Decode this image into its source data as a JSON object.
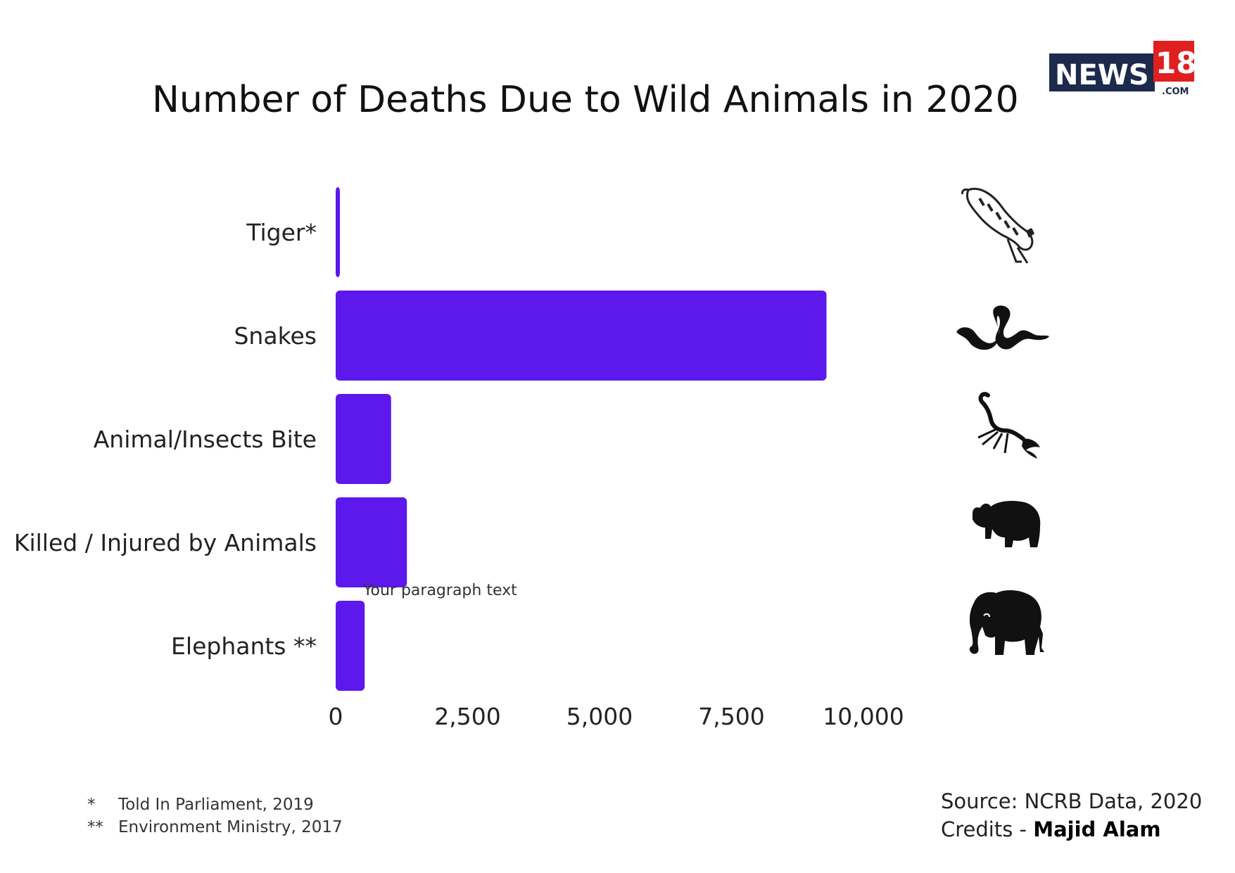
{
  "title": "Number of Deaths Due to Wild Animals in 2020",
  "logo": {
    "brand": "NEWS",
    "number": "18",
    "suffix": ".COM"
  },
  "placeholder_text": "Your paragraph text",
  "footnotes": [
    {
      "mark": "*",
      "text": "Told In Parliament, 2019"
    },
    {
      "mark": "**",
      "text": "Environment Ministry, 2017"
    }
  ],
  "source": "Source: NCRB Data, 2020",
  "credits": {
    "prefix": "Credits - ",
    "name": "Majid Alam"
  },
  "colors": {
    "bar": "#5d18eb",
    "logo_dark": "#1c2a4c",
    "logo_red": "#e0201f"
  },
  "icons": [
    "tiger-icon",
    "snake-icon",
    "scorpion-icon",
    "bear-icon",
    "elephant-icon"
  ],
  "chart_data": {
    "type": "bar",
    "orientation": "horizontal",
    "title": "Number of Deaths Due to Wild Animals in 2020",
    "categories": [
      "Tiger*",
      "Snakes",
      "Animal/Insects Bite",
      "Killed / Injured by Animals",
      "Elephants **"
    ],
    "values": [
      80,
      9300,
      1050,
      1350,
      550
    ],
    "xlim": [
      0,
      10000
    ],
    "xticks": [
      "0",
      "2,500",
      "5,000",
      "7,500",
      "10,000"
    ],
    "xtick_values": [
      0,
      2500,
      5000,
      7500,
      10000
    ],
    "grid": false,
    "legend": "none"
  }
}
